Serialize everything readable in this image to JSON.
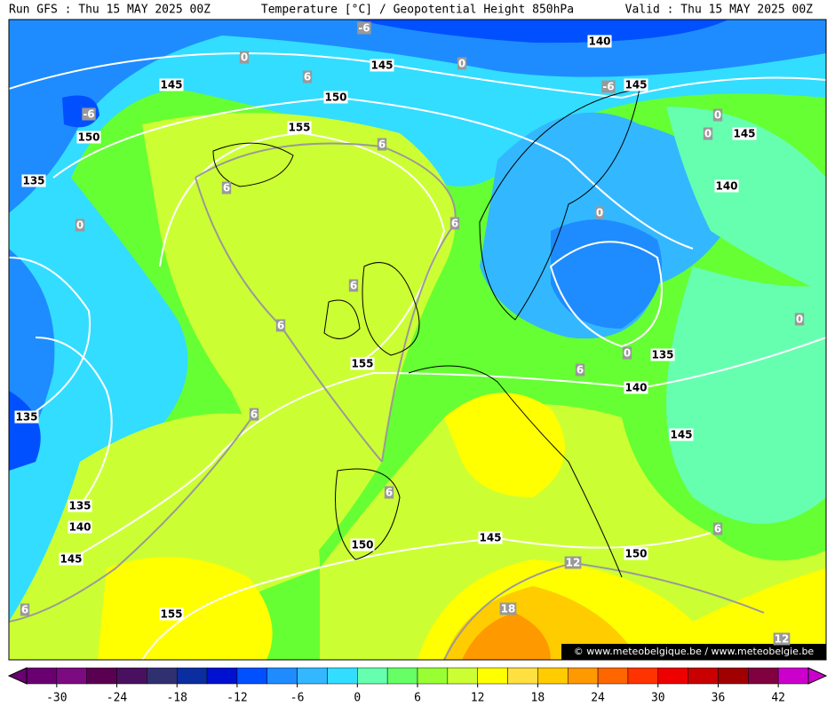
{
  "header": {
    "run": "Run GFS : Thu 15 MAY 2025 00Z",
    "title": "Temperature [°C] / Geopotential Height 850hPa",
    "valid": "Valid : Thu 15 MAY 2025 00Z"
  },
  "height_labels": [
    140,
    145,
    145,
    145,
    150,
    150,
    155,
    145,
    140,
    135,
    135,
    155,
    135,
    140,
    145,
    135,
    140,
    150,
    145,
    145,
    150,
    155
  ],
  "temperature_labels": [
    -6,
    0,
    0,
    6,
    -6,
    -6,
    0,
    0,
    6,
    6,
    0,
    0,
    6,
    6,
    0,
    6,
    0,
    6,
    6,
    6,
    6,
    12,
    6,
    18,
    12
  ],
  "watermark": "© www.meteobelgique.be / www.meteobelgie.be",
  "colorbar": {
    "lim": [
      -33,
      45
    ],
    "ticks": [
      -30,
      -24,
      -18,
      -12,
      -6,
      0,
      6,
      12,
      18,
      24,
      30,
      36,
      42
    ],
    "colors": [
      "#6a0070",
      "#7c0a80",
      "#5a0050",
      "#4a1060",
      "#303070",
      "#0a2ea0",
      "#0010d0",
      "#0050ff",
      "#1e8cff",
      "#33b8ff",
      "#33ddff",
      "#66ffb0",
      "#66ff66",
      "#99ff33",
      "#ccff33",
      "#ffff00",
      "#ffe040",
      "#ffcc00",
      "#ff9900",
      "#ff6600",
      "#ff3300",
      "#ee0000",
      "#c80000",
      "#a00000",
      "#800040",
      "#cc00cc"
    ]
  }
}
